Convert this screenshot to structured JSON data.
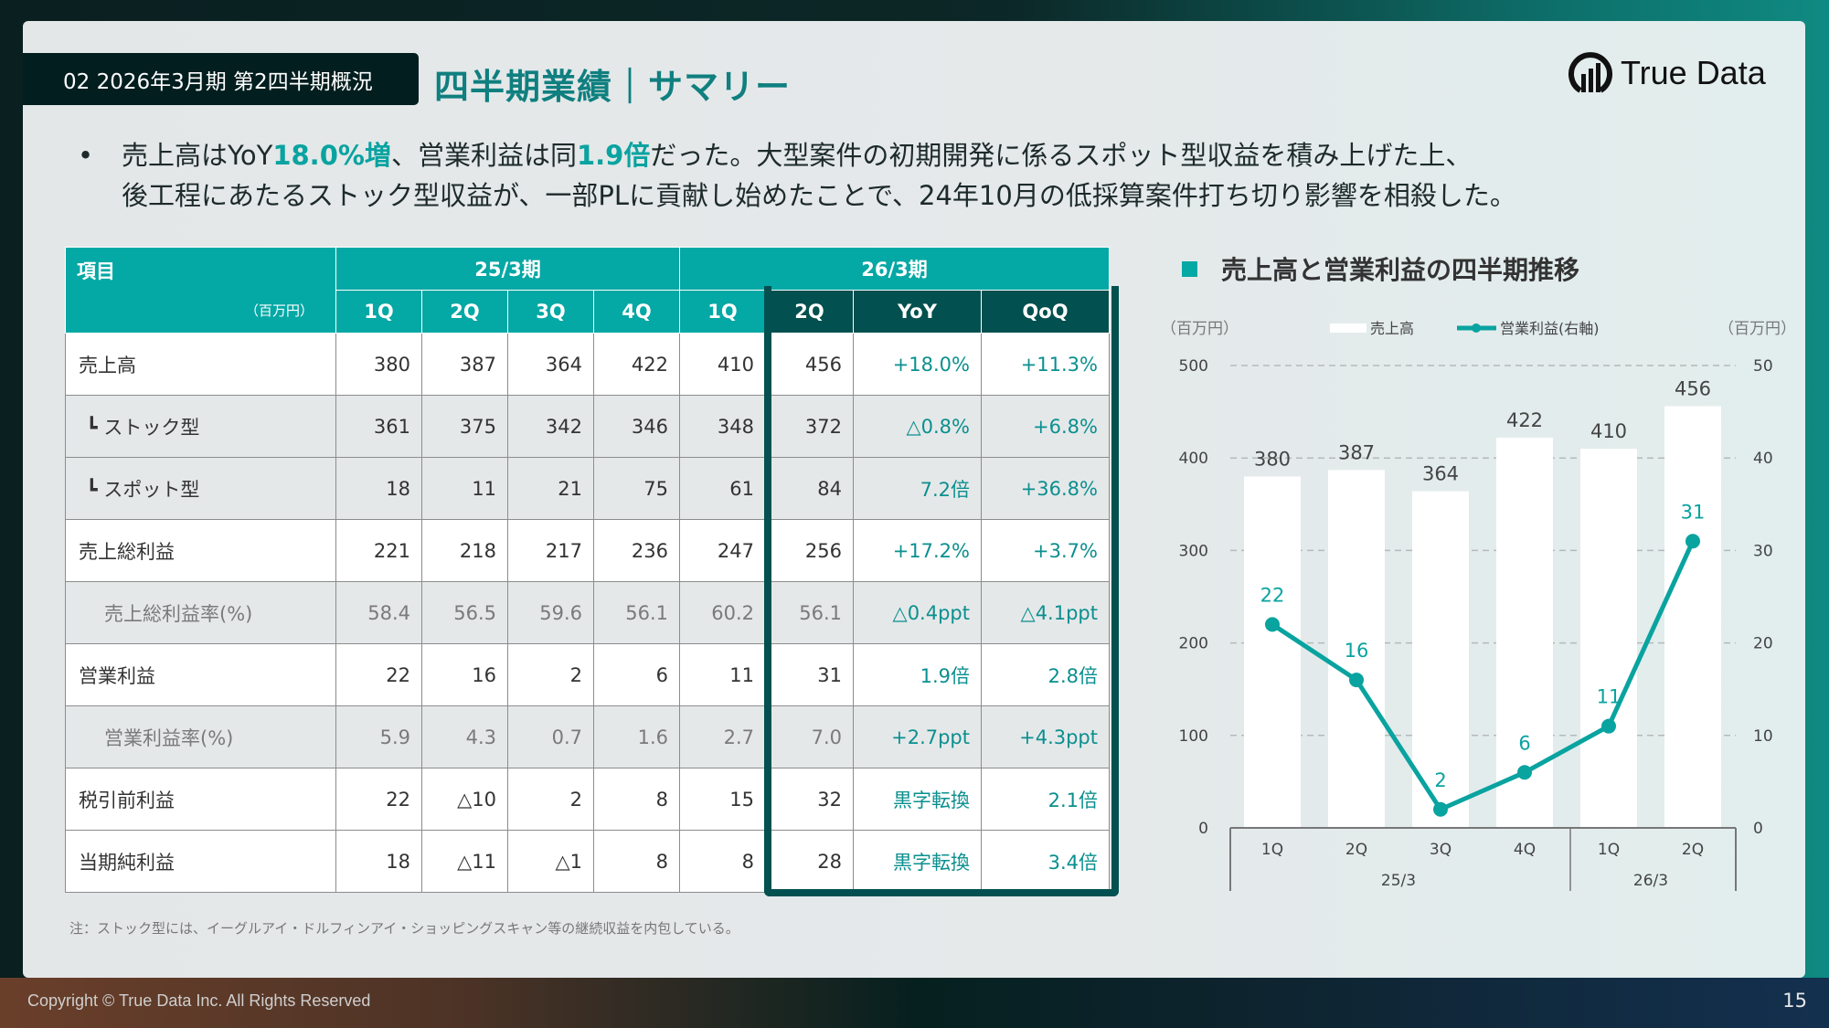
{
  "header": {
    "section_tag": "02 2026年3月期 第2四半期概況",
    "title": "四半期業績｜サマリー",
    "logo_text": "True Data"
  },
  "bullet": {
    "p1": "売上高はYoY",
    "h1": "18.0%増",
    "p2": "、営業利益は同",
    "h2": "1.9倍",
    "p3": "だった。大型案件の初期開発に係るスポット型収益を積み上げた上、",
    "line2": "後工程にあたるストック型収益が、一部PLに貢献し始めたことで、24年10月の低採算案件打ち切り影響を相殺した。"
  },
  "table": {
    "item_header": "項目",
    "unit": "（百万円）",
    "period1": "25/3期",
    "period2": "26/3期",
    "columns": [
      "1Q",
      "2Q",
      "3Q",
      "4Q",
      "1Q",
      "2Q",
      "YoY",
      "QoQ"
    ],
    "rows": [
      {
        "label": "売上高",
        "values": [
          "380",
          "387",
          "364",
          "422",
          "410",
          "456",
          "+18.0%",
          "+11.3%"
        ]
      },
      {
        "label": "┗ ストック型",
        "values": [
          "361",
          "375",
          "342",
          "346",
          "348",
          "372",
          "△0.8%",
          "+6.8%"
        ]
      },
      {
        "label": "┗ スポット型",
        "values": [
          "18",
          "11",
          "21",
          "75",
          "61",
          "84",
          "7.2倍",
          "+36.8%"
        ]
      },
      {
        "label": "売上総利益",
        "values": [
          "221",
          "218",
          "217",
          "236",
          "247",
          "256",
          "+17.2%",
          "+3.7%"
        ]
      },
      {
        "label": "売上総利益率(%)",
        "values": [
          "58.4",
          "56.5",
          "59.6",
          "56.1",
          "60.2",
          "56.1",
          "△0.4ppt",
          "△4.1ppt"
        ]
      },
      {
        "label": "営業利益",
        "values": [
          "22",
          "16",
          "2",
          "6",
          "11",
          "31",
          "1.9倍",
          "2.8倍"
        ]
      },
      {
        "label": "営業利益率(%)",
        "values": [
          "5.9",
          "4.3",
          "0.7",
          "1.6",
          "2.7",
          "7.0",
          "+2.7ppt",
          "+4.3ppt"
        ]
      },
      {
        "label": "税引前利益",
        "values": [
          "22",
          "△10",
          "2",
          "8",
          "15",
          "32",
          "黒字転換",
          "2.1倍"
        ]
      },
      {
        "label": "当期純利益",
        "values": [
          "18",
          "△11",
          "△1",
          "8",
          "8",
          "28",
          "黒字転換",
          "3.4倍"
        ]
      }
    ]
  },
  "note": "注：ストック型には、イーグルアイ・ドルフィンアイ・ショッピングスキャン等の継続収益を内包している。",
  "footer": {
    "copyright": "Copyright © True Data Inc. All Rights Reserved",
    "page": "15"
  },
  "colors": {
    "accent": "#04a8a5",
    "dark": "#02504f",
    "line": "#09a3a0"
  },
  "chart_data": {
    "type": "bar",
    "title": "売上高と営業利益の四半期推移",
    "left_unit": "（百万円）",
    "right_unit": "（百万円）",
    "categories": [
      "1Q",
      "2Q",
      "3Q",
      "4Q",
      "1Q",
      "2Q"
    ],
    "groups": [
      {
        "label": "25/3",
        "count": 4
      },
      {
        "label": "26/3",
        "count": 2
      }
    ],
    "series": [
      {
        "name": "売上高",
        "type": "bar",
        "axis": "left",
        "values": [
          380,
          387,
          364,
          422,
          410,
          456
        ]
      },
      {
        "name": "営業利益(右軸)",
        "type": "line",
        "axis": "right",
        "values": [
          22,
          16,
          2,
          6,
          11,
          31
        ]
      }
    ],
    "ylim_left": [
      0,
      500
    ],
    "ylim_right": [
      0,
      50
    ],
    "yticks_left": [
      0,
      100,
      200,
      300,
      400,
      500
    ],
    "yticks_right": [
      0,
      10,
      20,
      30,
      40,
      50
    ],
    "grid": true,
    "legend": "top-center"
  }
}
